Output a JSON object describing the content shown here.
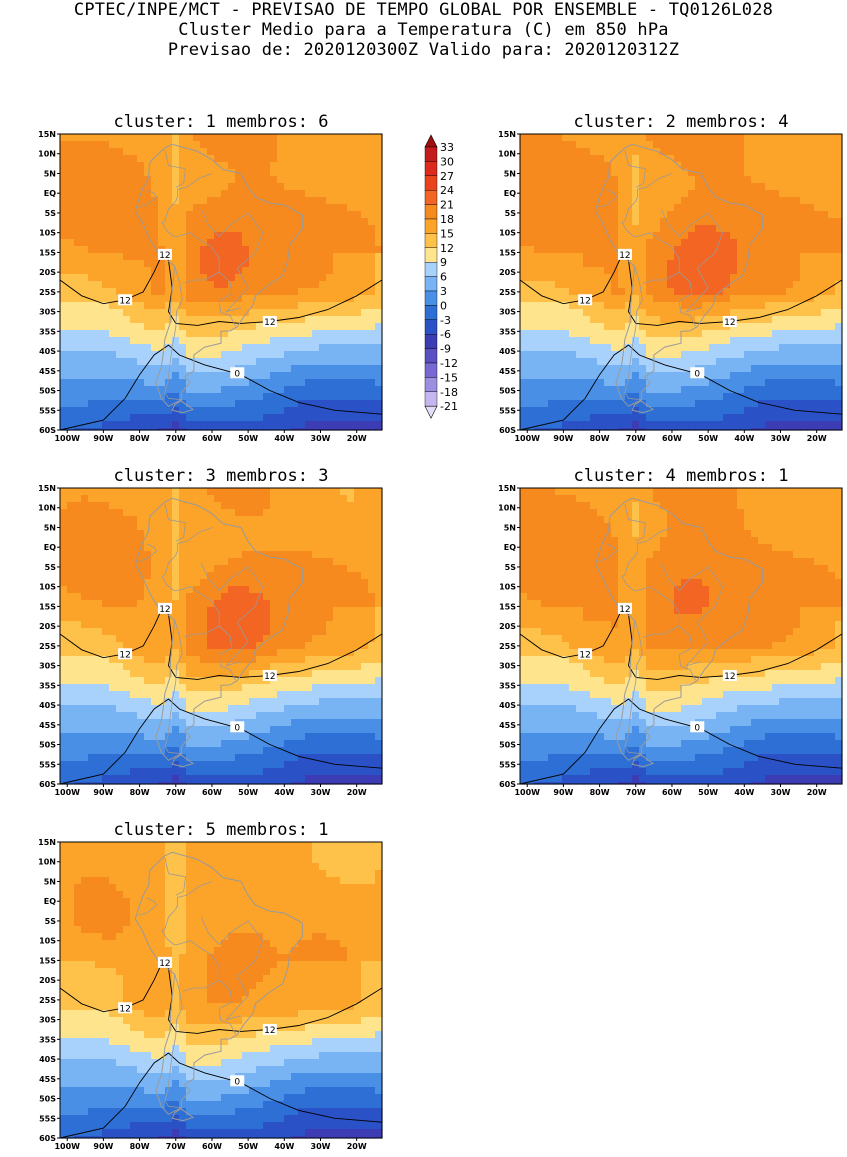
{
  "header": {
    "line1": "CPTEC/INPE/MCT - PREVISAO DE TEMPO GLOBAL POR ENSEMBLE - TQ0126L028",
    "line2": "Cluster Medio para a Temperatura (C) em 850 hPa",
    "line3": "Previsao de: 2020120300Z   Valido para: 2020120312Z"
  },
  "axes": {
    "lat_labels": [
      "15N",
      "10N",
      "5N",
      "EQ",
      "5S",
      "10S",
      "15S",
      "20S",
      "25S",
      "30S",
      "35S",
      "40S",
      "45S",
      "50S",
      "55S",
      "60S"
    ],
    "lon_labels": [
      "100W",
      "90W",
      "80W",
      "70W",
      "60W",
      "50W",
      "40W",
      "30W",
      "20W"
    ]
  },
  "colorbar": {
    "levels": [
      "33",
      "30",
      "27",
      "24",
      "21",
      "18",
      "15",
      "12",
      "9",
      "6",
      "3",
      "0",
      "-3",
      "-6",
      "-9",
      "-12",
      "-15",
      "-18",
      "-21"
    ],
    "colors": [
      "#a01010",
      "#c41c1c",
      "#dc2a1c",
      "#e8431c",
      "#f26522",
      "#f68a1e",
      "#fca32a",
      "#fec24a",
      "#ffe48e",
      "#a8d2fb",
      "#78b4f4",
      "#4a8fe6",
      "#2e6fd6",
      "#2a52c6",
      "#3c3cb4",
      "#5a50c4",
      "#7868d2",
      "#9c8ee0",
      "#c4b6ee",
      "#e4dcf8"
    ]
  },
  "contour_labels": {
    "warm": "12",
    "cold": "0"
  },
  "panels": [
    {
      "title": "cluster: 1   membros: 6"
    },
    {
      "title": "cluster: 2   membros: 4"
    },
    {
      "title": "cluster: 3   membros: 3"
    },
    {
      "title": "cluster: 4   membros: 1"
    },
    {
      "title": "cluster: 5   membros: 1"
    }
  ]
}
